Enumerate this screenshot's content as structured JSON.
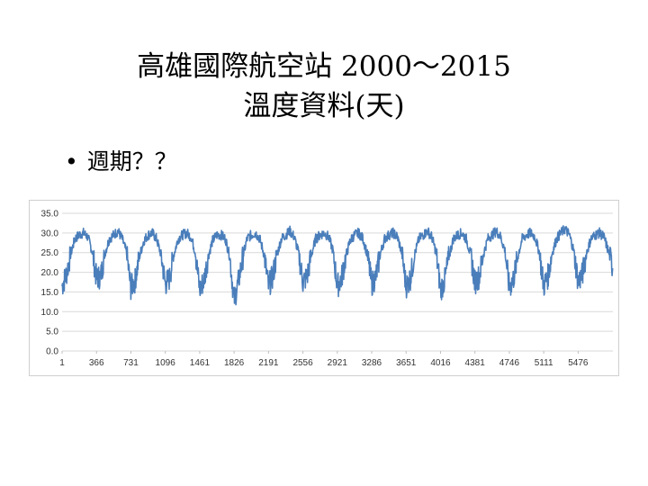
{
  "slide": {
    "title_line1": "高雄國際航空站 2000～2015",
    "title_line2": "溫度資料(天)",
    "bullet": "週期？？"
  },
  "chart_data": {
    "type": "line",
    "title": "",
    "xlabel": "",
    "ylabel": "",
    "ylim": [
      0,
      35
    ],
    "yticks": [
      "0.0",
      "5.0",
      "10.0",
      "15.0",
      "20.0",
      "25.0",
      "30.0",
      "35.0"
    ],
    "xticks": [
      "1",
      "366",
      "731",
      "1096",
      "1461",
      "1826",
      "2191",
      "2556",
      "2921",
      "3286",
      "3651",
      "4016",
      "4381",
      "4746",
      "5111",
      "5476"
    ],
    "xlim": [
      1,
      5845
    ],
    "grid": true,
    "legend": "none",
    "series": [
      {
        "name": "",
        "color": "#4a7ebb",
        "x": [
          1,
          46,
          91,
          136,
          182,
          227,
          273,
          319,
          366,
          411,
          456,
          502,
          547,
          593,
          639,
          685,
          731,
          776,
          821,
          867,
          913,
          958,
          1004,
          1050,
          1096,
          1141,
          1186,
          1232,
          1278,
          1323,
          1369,
          1415,
          1461,
          1506,
          1551,
          1597,
          1643,
          1688,
          1734,
          1780,
          1826,
          1871,
          1916,
          1962,
          2008,
          2053,
          2099,
          2145,
          2191,
          2236,
          2281,
          2327,
          2373,
          2418,
          2464,
          2510,
          2556,
          2601,
          2646,
          2692,
          2738,
          2783,
          2829,
          2875,
          2921,
          2966,
          3011,
          3057,
          3103,
          3148,
          3194,
          3240,
          3286,
          3331,
          3376,
          3422,
          3468,
          3513,
          3559,
          3605,
          3651,
          3696,
          3741,
          3787,
          3833,
          3878,
          3924,
          3970,
          4016,
          4061,
          4106,
          4152,
          4198,
          4243,
          4289,
          4335,
          4381,
          4426,
          4471,
          4517,
          4563,
          4608,
          4654,
          4700,
          4746,
          4791,
          4836,
          4882,
          4928,
          4973,
          5019,
          5065,
          5111,
          5156,
          5201,
          5247,
          5293,
          5338,
          5384,
          5430,
          5476,
          5521,
          5566,
          5612,
          5658,
          5703,
          5749,
          5795,
          5845
        ],
        "values": [
          16.5,
          19.5,
          24.5,
          28.5,
          29.5,
          30.0,
          29.0,
          25.5,
          18.5,
          19.0,
          25.0,
          28.5,
          29.5,
          30.5,
          28.5,
          25.0,
          16.0,
          18.0,
          24.0,
          28.0,
          29.5,
          30.0,
          28.5,
          24.5,
          17.0,
          18.5,
          24.5,
          28.5,
          29.5,
          30.0,
          29.0,
          25.0,
          15.5,
          18.0,
          24.0,
          28.0,
          29.5,
          29.5,
          28.5,
          24.0,
          13.0,
          17.5,
          23.5,
          28.5,
          29.5,
          30.0,
          28.5,
          24.5,
          16.5,
          19.0,
          24.5,
          28.5,
          29.5,
          30.5,
          29.0,
          25.0,
          17.5,
          19.0,
          24.5,
          28.5,
          29.5,
          30.0,
          29.0,
          25.5,
          16.5,
          18.5,
          24.0,
          28.0,
          29.5,
          30.0,
          28.5,
          24.5,
          17.0,
          19.0,
          24.5,
          28.5,
          29.5,
          30.0,
          29.0,
          25.0,
          16.5,
          18.5,
          24.5,
          28.5,
          29.5,
          30.5,
          29.0,
          25.0,
          15.5,
          18.0,
          24.0,
          28.5,
          29.5,
          30.0,
          28.5,
          24.5,
          17.5,
          19.0,
          24.5,
          28.5,
          29.5,
          30.5,
          29.0,
          25.5,
          16.0,
          18.5,
          24.0,
          28.5,
          29.5,
          30.0,
          29.0,
          25.0,
          16.5,
          19.0,
          25.0,
          28.5,
          30.0,
          31.0,
          29.5,
          25.5,
          17.5,
          19.5,
          25.0,
          28.5,
          29.5,
          30.0,
          29.0,
          25.5,
          21.0
        ]
      }
    ]
  }
}
